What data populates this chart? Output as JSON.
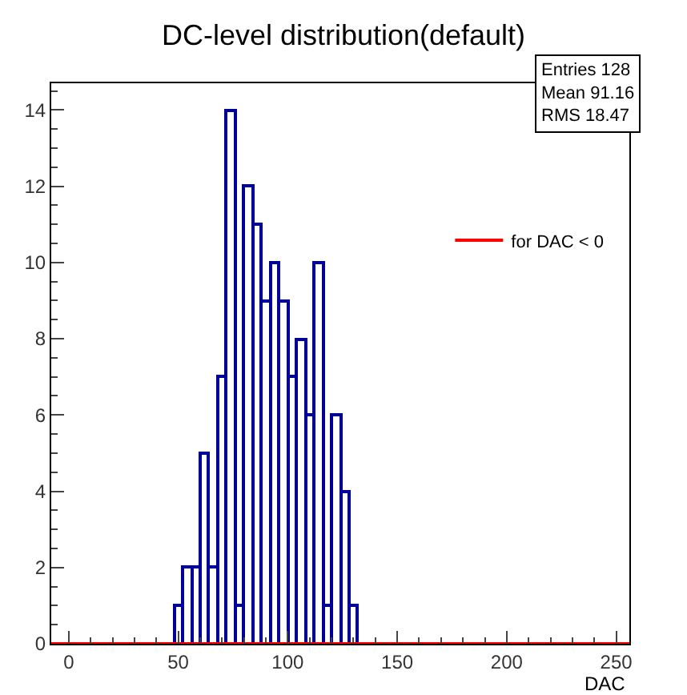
{
  "chart_data": {
    "type": "histogram",
    "title": "DC-level distribution(default)",
    "xlabel": "DAC",
    "bins": [
      48,
      52,
      56,
      60,
      64,
      68,
      72,
      76,
      80,
      84,
      88,
      92,
      96,
      100,
      104,
      108,
      112,
      116,
      120,
      124,
      128,
      132
    ],
    "series": [
      {
        "color": "#000099",
        "values": [
          1,
          2,
          2,
          5,
          2,
          7,
          14,
          1,
          12,
          11,
          9,
          10,
          9,
          7,
          8,
          6,
          10,
          1,
          6,
          4,
          1
        ]
      },
      {
        "type": "line",
        "name": "for DAC < 0",
        "color": "#ff0000",
        "x": [
          -8,
          256
        ],
        "values": [
          0,
          0
        ]
      }
    ],
    "xlim": [
      -8,
      256
    ],
    "xticks": [
      0,
      50,
      100,
      150,
      200,
      250
    ],
    "ylim": [
      0,
      14.7
    ],
    "yticks": [
      0,
      2,
      4,
      6,
      8,
      10,
      12,
      14
    ],
    "annotations": [
      "Entries 128",
      "Mean 91.16",
      "RMS 18.47"
    ],
    "legend": "right",
    "grid": false
  }
}
